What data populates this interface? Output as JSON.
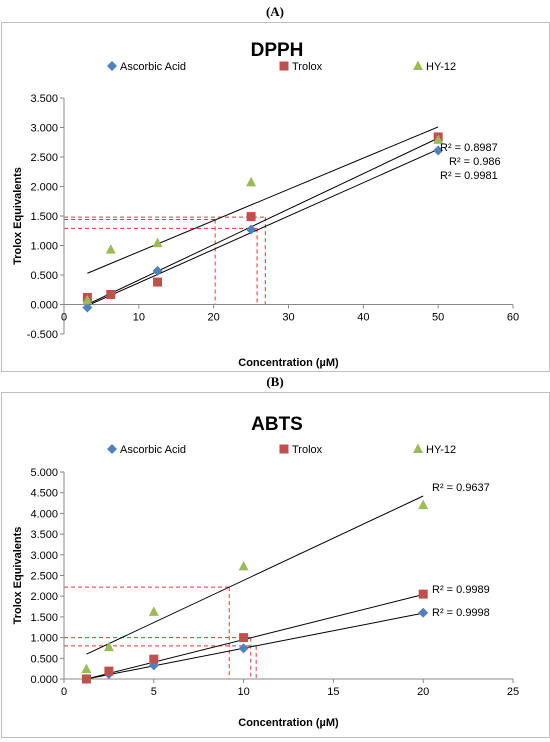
{
  "panels": [
    {
      "label": "(A)"
    },
    {
      "label": "(B)"
    }
  ],
  "chart_data": [
    {
      "type": "scatter",
      "title": "DPPH",
      "xlabel": "Concentration (µM)",
      "ylabel": "Trolox Equivalents",
      "xlim": [
        0,
        60
      ],
      "ylim": [
        -0.5,
        3.5
      ],
      "xticks": [
        "0",
        "10",
        "20",
        "30",
        "40",
        "50",
        "60"
      ],
      "yticks": [
        "-0.500",
        "0.000",
        "0.500",
        "1.000",
        "1.500",
        "2.000",
        "2.500",
        "3.000",
        "3.500"
      ],
      "legend_position": "top",
      "grid": false,
      "series": [
        {
          "name": "Ascorbic Acid",
          "marker": "diamond",
          "color": "#4f81bd",
          "x": [
            3.125,
            6.25,
            12.5,
            25,
            50
          ],
          "y": [
            -0.05,
            0.17,
            0.57,
            1.27,
            2.61
          ],
          "fit": {
            "x": [
              3.125,
              50
            ],
            "y": [
              -0.02,
              2.63
            ]
          },
          "r2": "R² = 0.9981"
        },
        {
          "name": "Trolox",
          "marker": "square",
          "color": "#c0504d",
          "x": [
            3.125,
            6.25,
            12.5,
            25,
            50
          ],
          "y": [
            0.12,
            0.17,
            0.38,
            1.49,
            2.84
          ],
          "fit": {
            "x": [
              3.125,
              50
            ],
            "y": [
              0.0,
              2.82
            ]
          },
          "r2": "R² = 0.986"
        },
        {
          "name": "HY-12",
          "marker": "triangle",
          "color": "#9bbb59",
          "x": [
            3.125,
            6.25,
            12.5,
            25,
            50
          ],
          "y": [
            0.07,
            0.93,
            1.04,
            2.07,
            2.79
          ],
          "fit": {
            "x": [
              3.125,
              50
            ],
            "y": [
              0.53,
              3.01
            ]
          },
          "r2": "R² = 0.8987"
        }
      ],
      "reference_lines": [
        {
          "x": 20.2,
          "y": 1.44
        },
        {
          "x": 25.8,
          "y": 1.29
        },
        {
          "x": 26.9,
          "y": 1.48
        }
      ]
    },
    {
      "type": "scatter",
      "title": "ABTS",
      "xlabel": "Concentration (µM)",
      "ylabel": "Trolox Equivalents",
      "xlim": [
        0,
        25
      ],
      "ylim": [
        0,
        5
      ],
      "xticks": [
        "0",
        "5",
        "10",
        "15",
        "20",
        "25"
      ],
      "yticks": [
        "0.000",
        "0.500",
        "1.000",
        "1.500",
        "2.000",
        "2.500",
        "3.000",
        "3.500",
        "4.000",
        "4.500",
        "5.000"
      ],
      "legend_position": "top",
      "grid": false,
      "series": [
        {
          "name": "Ascorbic Acid",
          "marker": "diamond",
          "color": "#4f81bd",
          "x": [
            1.25,
            2.5,
            5,
            10,
            20
          ],
          "y": [
            0.0,
            0.12,
            0.33,
            0.74,
            1.6
          ],
          "fit": {
            "x": [
              1.25,
              20
            ],
            "y": [
              0.0,
              1.59
            ]
          },
          "r2": "R² = 0.9998"
        },
        {
          "name": "Trolox",
          "marker": "square",
          "color": "#c0504d",
          "x": [
            1.25,
            2.5,
            5,
            10,
            20
          ],
          "y": [
            0.0,
            0.19,
            0.48,
            1.0,
            2.05
          ],
          "fit": {
            "x": [
              1.25,
              20
            ],
            "y": [
              0.0,
              2.04
            ]
          },
          "r2": "R² = 0.9989"
        },
        {
          "name": "HY-12",
          "marker": "triangle",
          "color": "#9bbb59",
          "x": [
            1.25,
            2.5,
            5,
            10,
            20
          ],
          "y": [
            0.24,
            0.77,
            1.62,
            2.72,
            4.2
          ],
          "fit": {
            "x": [
              1.25,
              20
            ],
            "y": [
              0.6,
              4.42
            ]
          },
          "r2": "R² = 0.9637"
        }
      ],
      "reference_lines": [
        {
          "x": 9.2,
          "y": 2.22
        },
        {
          "x": 10.4,
          "y": 1.0
        },
        {
          "x": 10.7,
          "y": 0.8
        }
      ]
    }
  ]
}
